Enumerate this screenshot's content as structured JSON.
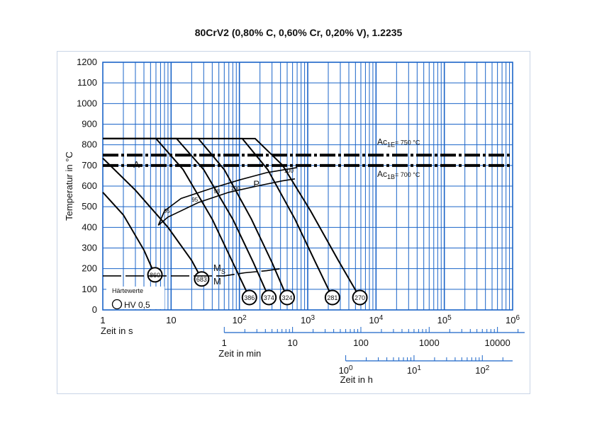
{
  "title": "80CrV2 (0,80% C, 0,60% Cr, 0,20% V), 1.2235",
  "chart_data": {
    "type": "line",
    "title": "80CrV2 (0,80% C, 0,60% Cr, 0,20% V), 1.2235",
    "xlabel": "Zeit in s",
    "ylabel": "Temperatur in °C",
    "x_scale": "log",
    "xlim": [
      1,
      1000000
    ],
    "ylim": [
      0,
      1200
    ],
    "y_ticks": [
      "0",
      "100",
      "200",
      "300",
      "400",
      "500",
      "600",
      "700",
      "800",
      "900",
      "1000",
      "1100",
      "1200"
    ],
    "x_ticks": [
      {
        "v": 1,
        "base": "1",
        "exp": ""
      },
      {
        "v": 10,
        "base": "10",
        "exp": ""
      },
      {
        "v": 100,
        "base": "10",
        "exp": "2"
      },
      {
        "v": 1000,
        "base": "10",
        "exp": "3"
      },
      {
        "v": 10000,
        "base": "10",
        "exp": "4"
      },
      {
        "v": 100000,
        "base": "10",
        "exp": "5"
      },
      {
        "v": 1000000,
        "base": "10",
        "exp": "6"
      }
    ],
    "minutes_axis": {
      "label": "Zeit in min",
      "ticks": [
        {
          "v": 1,
          "label": "1"
        },
        {
          "v": 10,
          "label": "10"
        },
        {
          "v": 100,
          "label": "100"
        },
        {
          "v": 1000,
          "label": "1000"
        },
        {
          "v": 10000,
          "label": "10000"
        }
      ]
    },
    "hours_axis": {
      "label": "Zeit in h",
      "ticks": [
        {
          "v": 1,
          "base": "10",
          "exp": "0"
        },
        {
          "v": 10,
          "base": "10",
          "exp": "1"
        },
        {
          "v": 100,
          "base": "10",
          "exp": "2"
        }
      ]
    },
    "reference_lines": [
      {
        "label_main": "Ac",
        "label_sub": "1E",
        "label_rest": "= 750 °C",
        "y": 750
      },
      {
        "label_main": "Ac",
        "label_sub": "1B",
        "label_rest": "= 700 °C",
        "y": 700
      }
    ],
    "austenitizing_temp": 830,
    "cooling_curves": [
      {
        "hardness": "860",
        "points": [
          [
            1,
            570
          ],
          [
            2,
            460
          ],
          [
            4,
            290
          ],
          [
            5.8,
            170
          ]
        ]
      },
      {
        "hardness": "683",
        "points": [
          [
            1,
            735
          ],
          [
            3,
            580
          ],
          [
            9,
            400
          ],
          [
            20,
            240
          ],
          [
            28,
            150
          ]
        ]
      },
      {
        "hardness": "386",
        "points": [
          [
            1,
            830
          ],
          [
            6,
            830
          ],
          [
            15,
            680
          ],
          [
            40,
            440
          ],
          [
            80,
            230
          ],
          [
            140,
            60
          ]
        ]
      },
      {
        "hardness": "374",
        "points": [
          [
            1,
            830
          ],
          [
            12,
            830
          ],
          [
            30,
            680
          ],
          [
            80,
            440
          ],
          [
            160,
            230
          ],
          [
            270,
            60
          ]
        ]
      },
      {
        "hardness": "324",
        "points": [
          [
            1,
            830
          ],
          [
            25,
            830
          ],
          [
            60,
            680
          ],
          [
            150,
            440
          ],
          [
            300,
            230
          ],
          [
            500,
            60
          ]
        ]
      },
      {
        "hardness": "281",
        "points": [
          [
            1,
            830
          ],
          [
            110,
            830
          ],
          [
            260,
            680
          ],
          [
            650,
            440
          ],
          [
            1300,
            230
          ],
          [
            2300,
            60
          ]
        ]
      },
      {
        "hardness": "270",
        "points": [
          [
            1,
            830
          ],
          [
            170,
            830
          ],
          [
            430,
            700
          ],
          [
            1100,
            480
          ],
          [
            2800,
            240
          ],
          [
            5800,
            60
          ]
        ]
      }
    ],
    "transformation_start": [
      [
        6.5,
        410
      ],
      [
        8,
        480
      ],
      [
        14,
        540
      ],
      [
        40,
        590
      ],
      [
        100,
        630
      ],
      [
        250,
        665
      ],
      [
        700,
        690
      ]
    ],
    "transformation_end": [
      [
        6.5,
        410
      ],
      [
        9,
        450
      ],
      [
        25,
        520
      ],
      [
        70,
        570
      ],
      [
        180,
        600
      ],
      [
        420,
        625
      ],
      [
        650,
        635
      ]
    ],
    "ms_line": [
      [
        1,
        165
      ],
      [
        60,
        165
      ],
      [
        120,
        180
      ],
      [
        250,
        190
      ],
      [
        400,
        200
      ]
    ],
    "region_labels": [
      {
        "text": "A",
        "x": 2.8,
        "y": 690
      },
      {
        "text": "P",
        "x": 160,
        "y": 595
      }
    ],
    "ms_label": {
      "text": "M",
      "sub": "S"
    },
    "m_label": "M",
    "percent_labels": [
      {
        "text": "95",
        "x": 7.8,
        "y": 470
      },
      {
        "text": "95",
        "x": 20,
        "y": 525
      },
      {
        "text": "98",
        "x": 42,
        "y": 565
      },
      {
        "text": "100",
        "x": 75,
        "y": 580
      },
      {
        "text": "100",
        "x": 450,
        "y": 665
      }
    ],
    "legend": {
      "title": "Härtewerte",
      "label": "HV 0,5"
    }
  }
}
